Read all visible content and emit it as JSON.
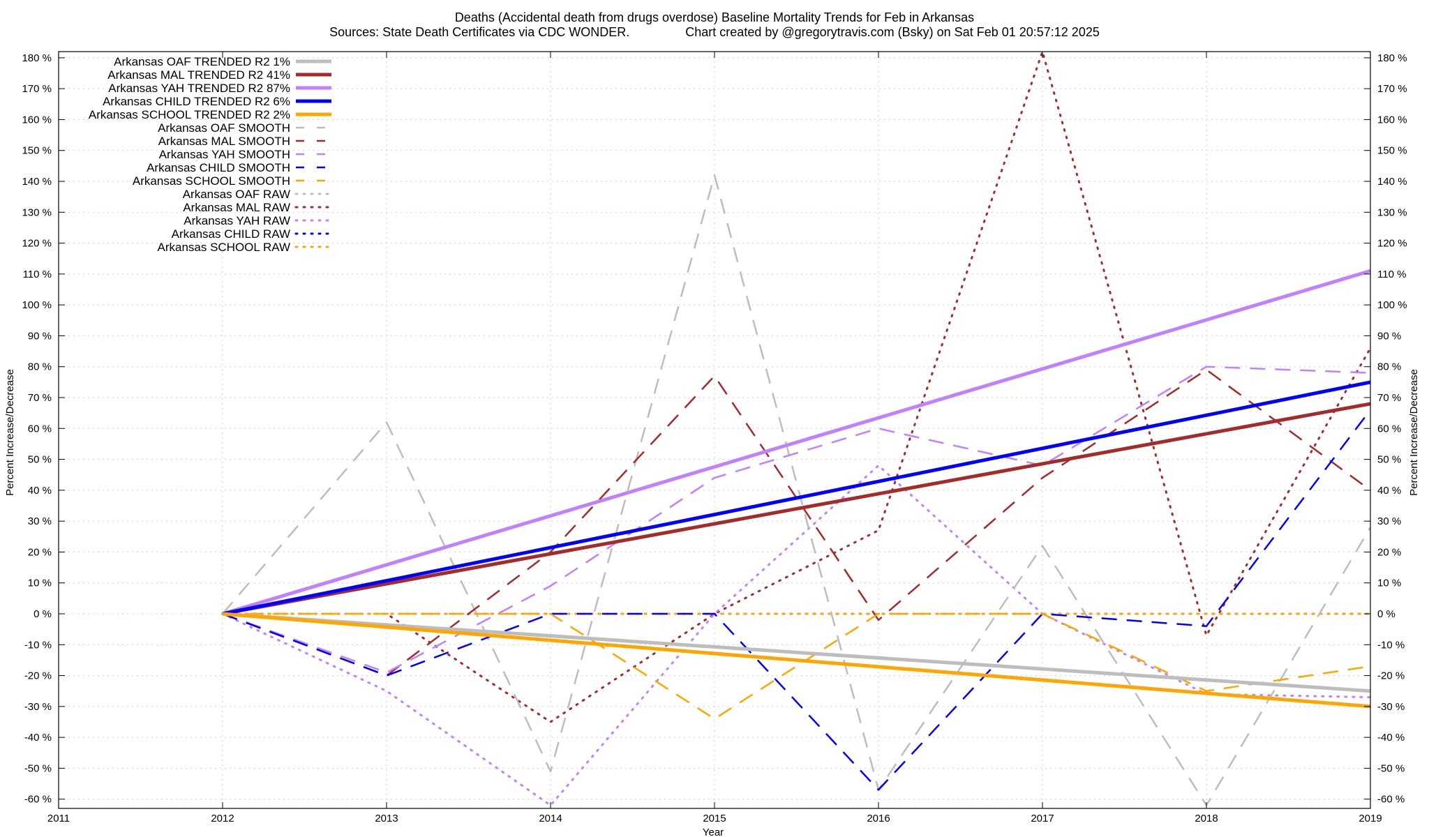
{
  "chart_data": {
    "type": "line",
    "title": "Deaths (Accidental death from drugs overdose)  Baseline Mortality Trends for Feb in Arkansas",
    "subtitle": "Sources: State Death Certificates via CDC WONDER.                Chart created by @gregorytravis.com (Bsky) on Sat Feb 01 20:57:12 2025",
    "xlabel": "Year",
    "ylabel": "Percent Increase/Decrease",
    "y2label": "Percent Increase/Decrease",
    "xlim": [
      2011,
      2019
    ],
    "ylim": [
      -63,
      182
    ],
    "x_ticks": [
      "2011",
      "2012",
      "2013",
      "2014",
      "2015",
      "2016",
      "2017",
      "2018",
      "2019"
    ],
    "y_ticks": [
      -60,
      -50,
      -40,
      -30,
      -20,
      -10,
      0,
      10,
      20,
      30,
      40,
      50,
      60,
      70,
      80,
      90,
      100,
      110,
      120,
      130,
      140,
      150,
      160,
      170,
      180
    ],
    "y_tick_suffix": " %",
    "grid": true,
    "legend_position": "top-left",
    "series": [
      {
        "name": "Arkansas OAF TRENDED R2  1%",
        "style": "solid",
        "color": "#bdbdbd",
        "x": [
          2012,
          2019
        ],
        "y": [
          0,
          -25
        ]
      },
      {
        "name": "Arkansas MAL TRENDED R2  41%",
        "style": "solid",
        "color": "#a52a2a",
        "x": [
          2012,
          2019
        ],
        "y": [
          0,
          68
        ]
      },
      {
        "name": "Arkansas YAH TRENDED R2  87%",
        "style": "solid",
        "color": "#c080ff",
        "x": [
          2012,
          2019
        ],
        "y": [
          0,
          111
        ]
      },
      {
        "name": "Arkansas CHILD TRENDED R2  6%",
        "style": "solid",
        "color": "#0000ff",
        "x": [
          2012,
          2019
        ],
        "y": [
          0,
          75
        ]
      },
      {
        "name": "Arkansas SCHOOL TRENDED R2  2%",
        "style": "solid",
        "color": "#ffa500",
        "x": [
          2012,
          2019
        ],
        "y": [
          0,
          -30
        ]
      },
      {
        "name": "Arkansas OAF SMOOTH",
        "style": "dashed",
        "color": "#bdbdbd",
        "x": [
          2012,
          2013,
          2014,
          2015,
          2016,
          2017,
          2018,
          2019
        ],
        "y": [
          0,
          62,
          -51,
          142,
          -57,
          22,
          -62,
          28
        ]
      },
      {
        "name": "Arkansas MAL SMOOTH",
        "style": "dashed",
        "color": "#a52a2a",
        "x": [
          2012,
          2013,
          2014,
          2015,
          2016,
          2017,
          2018,
          2019
        ],
        "y": [
          0,
          -20,
          20,
          77,
          -2,
          44,
          79,
          40
        ]
      },
      {
        "name": "Arkansas YAH SMOOTH",
        "style": "dashed",
        "color": "#c080ff",
        "x": [
          2012,
          2013,
          2014,
          2015,
          2016,
          2017,
          2018,
          2019
        ],
        "y": [
          0,
          -19,
          9,
          44,
          60,
          48,
          80,
          78
        ]
      },
      {
        "name": "Arkansas CHILD SMOOTH",
        "style": "dashed",
        "color": "#0000ff",
        "x": [
          2012,
          2013,
          2014,
          2015,
          2016,
          2017,
          2018,
          2019
        ],
        "y": [
          0,
          -20,
          0,
          0,
          -57,
          0,
          -4,
          66
        ]
      },
      {
        "name": "Arkansas SCHOOL SMOOTH",
        "style": "dashed",
        "color": "#ffa500",
        "x": [
          2012,
          2013,
          2014,
          2015,
          2016,
          2017,
          2018,
          2019
        ],
        "y": [
          0,
          0,
          0,
          -34,
          0,
          0,
          -25,
          -17
        ]
      },
      {
        "name": "Arkansas OAF RAW",
        "style": "dotted",
        "color": "#bdbdbd",
        "x": [
          2012,
          2013,
          2014,
          2015,
          2016,
          2017,
          2018,
          2019
        ],
        "y": [
          0,
          0,
          0,
          0,
          0,
          0,
          0,
          0
        ]
      },
      {
        "name": "Arkansas MAL RAW",
        "style": "dotted",
        "color": "#a52a2a",
        "x": [
          2012,
          2013,
          2014,
          2015,
          2016,
          2017,
          2018,
          2019
        ],
        "y": [
          0,
          0,
          -35,
          0,
          27,
          182,
          -7,
          86
        ]
      },
      {
        "name": "Arkansas YAH RAW",
        "style": "dotted",
        "color": "#c080ff",
        "x": [
          2012,
          2013,
          2014,
          2015,
          2016,
          2017,
          2018,
          2019
        ],
        "y": [
          0,
          -25,
          -62,
          0,
          48,
          0,
          -26,
          -27
        ]
      },
      {
        "name": "Arkansas CHILD RAW",
        "style": "dotted",
        "color": "#0000ff",
        "x": [
          2012,
          2013,
          2014,
          2015,
          2016,
          2017,
          2018,
          2019
        ],
        "y": [
          0,
          0,
          0,
          0,
          0,
          0,
          0,
          0
        ]
      },
      {
        "name": "Arkansas SCHOOL RAW",
        "style": "dotted",
        "color": "#ffa500",
        "x": [
          2012,
          2013,
          2014,
          2015,
          2016,
          2017,
          2018,
          2019
        ],
        "y": [
          0,
          0,
          0,
          0,
          0,
          0,
          0,
          0
        ]
      }
    ]
  }
}
